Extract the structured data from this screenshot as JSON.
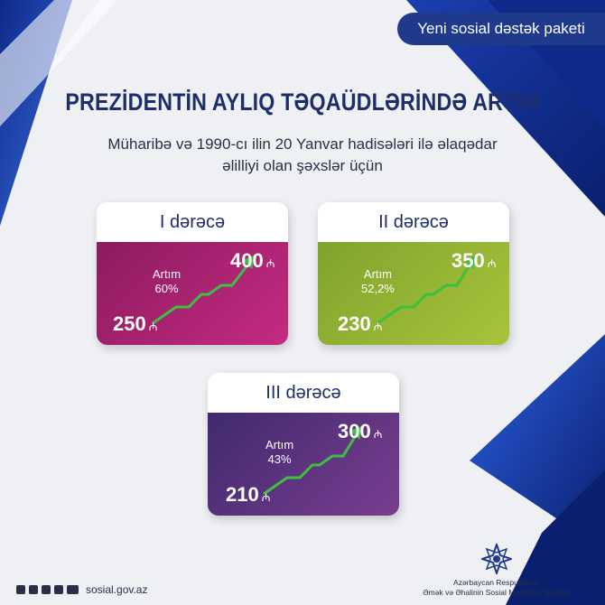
{
  "badge": "Yeni sosial dəstək paketi",
  "title": "PREZİDENTİN AYLIQ TƏQAÜDLƏRİNDƏ ARTIM",
  "subtitle_line1": "Müharibə və 1990-cı ilin 20 Yanvar hadisələri ilə əlaqədar",
  "subtitle_line2": "əlilliyi olan şəxslər üçün",
  "currency_symbol": "₼",
  "cards": [
    {
      "label": "I dərəcə",
      "from": "250",
      "to": "400",
      "increase_label": "Artım",
      "increase_value": "60%",
      "color_a": "#8c1b5e",
      "color_b": "#c52a83"
    },
    {
      "label": "II dərəcə",
      "from": "230",
      "to": "350",
      "increase_label": "Artım",
      "increase_value": "52,2%",
      "color_a": "#7fa32c",
      "color_b": "#a8c43c"
    },
    {
      "label": "III dərəcə",
      "from": "210",
      "to": "300",
      "increase_label": "Artım",
      "increase_value": "43%",
      "color_a": "#3f2a6e",
      "color_b": "#7a3d8f"
    }
  ],
  "footer": {
    "website": "sosial.gov.az",
    "ministry_line1": "Azərbaycan Respublikası",
    "ministry_line2": "Əmək və Əhalinin Sosial Müdafiəsi Nazirliyi",
    "social_icons": [
      "facebook-icon",
      "instagram-icon",
      "telegram-icon",
      "twitter-icon",
      "youtube-icon"
    ]
  }
}
